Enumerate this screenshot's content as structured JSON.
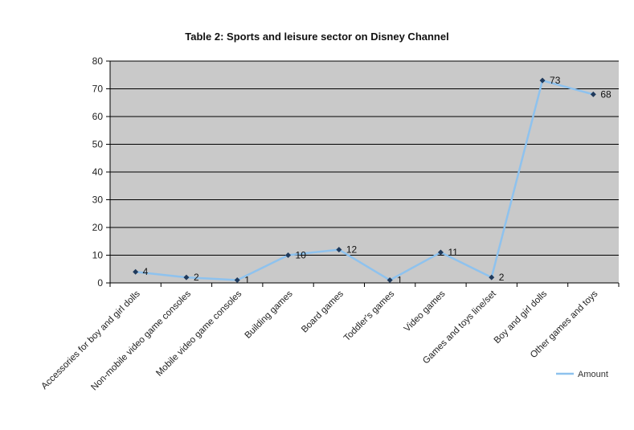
{
  "chart_data": {
    "type": "line",
    "title": "Table 2: Sports and leisure sector on Disney Channel",
    "categories": [
      "Accessories for boy and girl dolls",
      "Non-mobile video game consoles",
      "Mobile video game consoles",
      "Building games",
      "Board games",
      "Toddler's games",
      "Video games",
      "Games and toys line/set",
      "Boy and girl dolls",
      "Other games and toys"
    ],
    "series": [
      {
        "name": "Amount",
        "values": [
          4,
          2,
          1,
          10,
          12,
          1,
          11,
          2,
          73,
          68
        ]
      }
    ],
    "ylim": [
      0,
      80
    ],
    "yticks": [
      0,
      10,
      20,
      30,
      40,
      50,
      60,
      70,
      80
    ],
    "xlabel": "",
    "ylabel": "",
    "grid": true,
    "legend": "bottom-right",
    "colors": {
      "line": "#8ec2ee",
      "marker": "#1f3a5c",
      "plot_bg": "#c9c9c9",
      "grid": "#000000"
    }
  }
}
